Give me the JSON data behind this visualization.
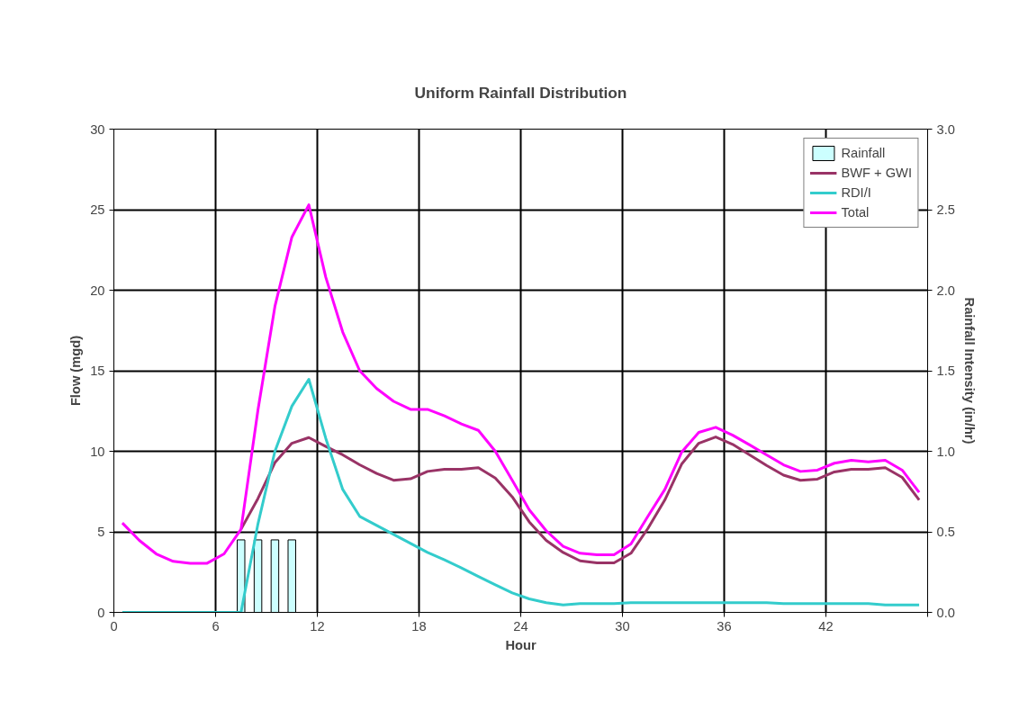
{
  "chart_data": {
    "type": "line",
    "title": "Uniform Rainfall Distribution",
    "xlabel": "Hour",
    "ylabel": "Flow (mgd)",
    "y2label": "Rainfall Intensity (in/hr)",
    "x": [
      0.5,
      1.5,
      2.5,
      3.5,
      4.5,
      5.5,
      6.5,
      7.5,
      8.5,
      9.5,
      10.5,
      11.5,
      12.5,
      13.5,
      14.5,
      15.5,
      16.5,
      17.5,
      18.5,
      19.5,
      20.5,
      21.5,
      22.5,
      23.5,
      24.5,
      25.5,
      26.5,
      27.5,
      28.5,
      29.5,
      30.5,
      31.5,
      32.5,
      33.5,
      34.5,
      35.5,
      36.5,
      37.5,
      38.5,
      39.5,
      40.5,
      41.5,
      42.5,
      43.5,
      44.5,
      45.5,
      46.5,
      47.5
    ],
    "series": [
      {
        "name": "Rainfall",
        "type": "bar",
        "axis": "y2",
        "color": "#ccffff",
        "x": [
          7.5,
          8.5,
          9.5,
          10.5
        ],
        "values": [
          0.45,
          0.45,
          0.45,
          0.45
        ]
      },
      {
        "name": "BWF + GWI",
        "color": "#993366",
        "values": [
          null,
          null,
          null,
          null,
          null,
          null,
          null,
          5.16,
          7.07,
          9.3,
          10.5,
          10.85,
          10.3,
          9.78,
          9.16,
          8.62,
          8.2,
          8.29,
          8.75,
          8.88,
          8.88,
          8.98,
          8.34,
          7.17,
          5.62,
          4.47,
          3.72,
          3.2,
          3.07,
          3.07,
          3.67,
          5.21,
          6.98,
          9.22,
          10.5,
          10.89,
          10.43,
          9.78,
          9.12,
          8.52,
          8.2,
          8.27,
          8.72,
          8.88,
          8.88,
          8.98,
          8.38,
          6.98
        ]
      },
      {
        "name": "RDI/I",
        "color": "#33cccc",
        "values": [
          0,
          0,
          0,
          0,
          0,
          0,
          0,
          0,
          5.5,
          10.0,
          12.8,
          14.47,
          10.8,
          7.63,
          5.96,
          5.4,
          4.84,
          4.28,
          3.72,
          3.26,
          2.76,
          2.23,
          1.71,
          1.21,
          0.84,
          0.6,
          0.46,
          0.55,
          0.55,
          0.55,
          0.6,
          0.6,
          0.6,
          0.6,
          0.6,
          0.6,
          0.6,
          0.6,
          0.6,
          0.55,
          0.55,
          0.55,
          0.55,
          0.55,
          0.55,
          0.46,
          0.46,
          0.46
        ]
      },
      {
        "name": "Total",
        "color": "#ff00ff",
        "values": [
          5.55,
          4.47,
          3.63,
          3.17,
          3.05,
          3.05,
          3.63,
          5.16,
          12.57,
          19.0,
          23.3,
          25.3,
          20.8,
          17.4,
          15.0,
          13.9,
          13.1,
          12.6,
          12.6,
          12.2,
          11.7,
          11.3,
          10.0,
          8.2,
          6.37,
          5.07,
          4.1,
          3.67,
          3.58,
          3.58,
          4.25,
          5.96,
          7.63,
          9.96,
          11.17,
          11.49,
          11.0,
          10.4,
          9.78,
          9.16,
          8.75,
          8.83,
          9.26,
          9.44,
          9.35,
          9.44,
          8.83,
          7.45
        ]
      }
    ],
    "xlim": [
      0,
      48
    ],
    "xticks": [
      0,
      6,
      12,
      18,
      24,
      30,
      36,
      42,
      {
        "value": 48,
        "label": null
      }
    ],
    "ylim": [
      0,
      30
    ],
    "yticks": [
      0,
      5,
      10,
      15,
      20,
      25,
      30
    ],
    "y2lim": [
      0,
      3.0
    ],
    "y2ticks": [
      {
        "value": 0,
        "label": "0.0"
      },
      {
        "value": 0.5,
        "label": "0.5"
      },
      {
        "value": 1.0,
        "label": "1.0"
      },
      {
        "value": 1.5,
        "label": "1.5"
      },
      {
        "value": 2.0,
        "label": "2.0"
      },
      {
        "value": 2.5,
        "label": "2.5"
      },
      {
        "value": 3.0,
        "label": "3.0"
      }
    ],
    "grid": true,
    "legend": "top right"
  }
}
